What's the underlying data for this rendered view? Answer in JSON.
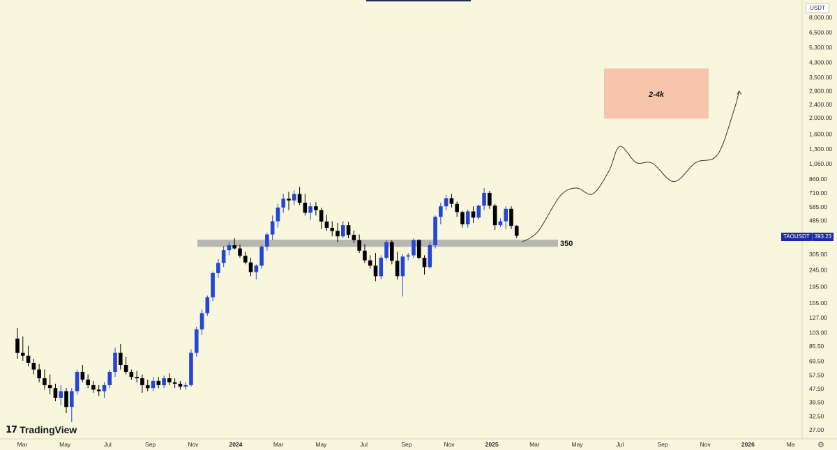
{
  "currency": "USDT",
  "brand": "TradingView",
  "symbol": "TAOUSDT",
  "last_price_label": "393.23",
  "support_label": "350",
  "target_label": "2-4k",
  "colors": {
    "background": "#f8f6dc",
    "bull": "#2446d6",
    "bear": "#000000",
    "support_zone": "#b7b7b1",
    "target_zone": "#f7c4ac",
    "projection": "#333333",
    "price_tag": "#1f2a9c"
  },
  "chart_data": {
    "type": "candlestick",
    "y_scale": "log",
    "y_tick_labels": [
      "8,000.00",
      "6,500.00",
      "5,300.00",
      "4,300.00",
      "3,500.00",
      "2,900.00",
      "2,400.00",
      "2,000.00",
      "1,600.00",
      "1,300.00",
      "1,060.00",
      "860.00",
      "710.00",
      "585.00",
      "485.00",
      "305.00",
      "245.00",
      "195.00",
      "155.00",
      "127.00",
      "103.00",
      "85.50",
      "69.50",
      "57.50",
      "47.50",
      "39.50",
      "32.50",
      "27.00"
    ],
    "x_tick_labels": [
      {
        "label": "Mar",
        "bold": false
      },
      {
        "label": "May",
        "bold": false
      },
      {
        "label": "Jul",
        "bold": false
      },
      {
        "label": "Sep",
        "bold": false
      },
      {
        "label": "Nov",
        "bold": false
      },
      {
        "label": "2024",
        "bold": true
      },
      {
        "label": "Mar",
        "bold": false
      },
      {
        "label": "May",
        "bold": false
      },
      {
        "label": "Jul",
        "bold": false
      },
      {
        "label": "Sep",
        "bold": false
      },
      {
        "label": "Nov",
        "bold": false
      },
      {
        "label": "2025",
        "bold": true
      },
      {
        "label": "Mar",
        "bold": false
      },
      {
        "label": "May",
        "bold": false
      },
      {
        "label": "Jul",
        "bold": false
      },
      {
        "label": "Sep",
        "bold": false
      },
      {
        "label": "Nov",
        "bold": false
      },
      {
        "label": "2026",
        "bold": true
      },
      {
        "label": "Ma",
        "bold": false
      }
    ],
    "candles": [
      [
        95,
        110,
        72,
        78
      ],
      [
        78,
        98,
        70,
        75
      ],
      [
        75,
        86,
        65,
        68
      ],
      [
        68,
        72,
        58,
        62
      ],
      [
        62,
        67,
        52,
        55
      ],
      [
        55,
        62,
        47,
        50
      ],
      [
        50,
        58,
        44,
        48
      ],
      [
        48,
        51,
        40,
        42
      ],
      [
        42,
        50,
        38,
        46
      ],
      [
        46,
        48,
        34,
        37
      ],
      [
        37,
        48,
        30,
        46
      ],
      [
        46,
        62,
        44,
        60
      ],
      [
        60,
        66,
        52,
        54
      ],
      [
        54,
        58,
        48,
        50
      ],
      [
        50,
        53,
        45,
        47
      ],
      [
        47,
        50,
        43,
        46
      ],
      [
        46,
        52,
        42,
        50
      ],
      [
        50,
        62,
        48,
        60
      ],
      [
        60,
        84,
        56,
        78
      ],
      [
        78,
        88,
        62,
        66
      ],
      [
        66,
        74,
        58,
        60
      ],
      [
        60,
        62,
        54,
        56
      ],
      [
        56,
        61,
        52,
        55
      ],
      [
        55,
        58,
        45,
        50
      ],
      [
        50,
        54,
        46,
        48
      ],
      [
        48,
        56,
        46,
        53
      ],
      [
        53,
        56,
        48,
        50
      ],
      [
        50,
        57,
        48,
        55
      ],
      [
        55,
        59,
        50,
        52
      ],
      [
        52,
        55,
        48,
        51
      ],
      [
        51,
        53,
        47,
        49
      ],
      [
        49,
        52,
        47,
        50
      ],
      [
        50,
        82,
        49,
        78
      ],
      [
        78,
        112,
        74,
        108
      ],
      [
        108,
        142,
        100,
        135
      ],
      [
        135,
        172,
        130,
        168
      ],
      [
        168,
        240,
        160,
        235
      ],
      [
        235,
        285,
        220,
        270
      ],
      [
        270,
        340,
        255,
        322
      ],
      [
        322,
        360,
        300,
        345
      ],
      [
        345,
        380,
        325,
        330
      ],
      [
        330,
        348,
        290,
        298
      ],
      [
        298,
        315,
        265,
        272
      ],
      [
        272,
        290,
        225,
        238
      ],
      [
        238,
        265,
        215,
        260
      ],
      [
        260,
        345,
        250,
        338
      ],
      [
        338,
        410,
        320,
        400
      ],
      [
        400,
        520,
        370,
        480
      ],
      [
        480,
        610,
        440,
        580
      ],
      [
        580,
        700,
        540,
        655
      ],
      [
        655,
        720,
        560,
        640
      ],
      [
        640,
        735,
        600,
        700
      ],
      [
        700,
        770,
        600,
        620
      ],
      [
        620,
        700,
        520,
        540
      ],
      [
        540,
        620,
        490,
        590
      ],
      [
        590,
        625,
        520,
        560
      ],
      [
        560,
        580,
        430,
        478
      ],
      [
        478,
        525,
        420,
        438
      ],
      [
        438,
        480,
        390,
        420
      ],
      [
        420,
        470,
        360,
        390
      ],
      [
        390,
        480,
        380,
        455
      ],
      [
        455,
        475,
        380,
        398
      ],
      [
        398,
        422,
        355,
        370
      ],
      [
        370,
        400,
        310,
        320
      ],
      [
        320,
        350,
        270,
        280
      ],
      [
        280,
        300,
        250,
        260
      ],
      [
        260,
        310,
        210,
        225
      ],
      [
        225,
        300,
        215,
        290
      ],
      [
        290,
        370,
        280,
        360
      ],
      [
        360,
        370,
        265,
        278
      ],
      [
        278,
        315,
        215,
        225
      ],
      [
        225,
        305,
        170,
        295
      ],
      [
        295,
        310,
        280,
        300
      ],
      [
        300,
        380,
        290,
        370
      ],
      [
        370,
        375,
        285,
        290
      ],
      [
        290,
        300,
        230,
        255
      ],
      [
        255,
        360,
        250,
        345
      ],
      [
        345,
        520,
        330,
        510
      ],
      [
        510,
        620,
        460,
        590
      ],
      [
        590,
        690,
        560,
        660
      ],
      [
        660,
        700,
        580,
        610
      ],
      [
        610,
        630,
        510,
        545
      ],
      [
        545,
        555,
        440,
        460
      ],
      [
        460,
        565,
        440,
        550
      ],
      [
        550,
        590,
        470,
        505
      ],
      [
        505,
        605,
        490,
        595
      ],
      [
        595,
        760,
        560,
        710
      ],
      [
        710,
        730,
        570,
        595
      ],
      [
        595,
        610,
        425,
        455
      ],
      [
        455,
        500,
        445,
        480
      ],
      [
        480,
        590,
        430,
        570
      ],
      [
        570,
        590,
        430,
        450
      ],
      [
        450,
        455,
        380,
        393.23
      ]
    ],
    "candle_x_start": 0,
    "support_zone": {
      "low": 337,
      "high": 372
    },
    "target_zone": {
      "low": 1980,
      "high": 3950
    },
    "projection_path": [
      {
        "i": 93,
        "v": 360
      },
      {
        "i": 96,
        "v": 420
      },
      {
        "i": 100,
        "v": 680
      },
      {
        "i": 103,
        "v": 760
      },
      {
        "i": 106,
        "v": 700
      },
      {
        "i": 109,
        "v": 960
      },
      {
        "i": 111,
        "v": 1350
      },
      {
        "i": 114,
        "v": 1080
      },
      {
        "i": 117,
        "v": 1070
      },
      {
        "i": 121,
        "v": 830
      },
      {
        "i": 125,
        "v": 1080
      },
      {
        "i": 129,
        "v": 1200
      },
      {
        "i": 132,
        "v": 2200
      },
      {
        "i": 133,
        "v": 2900
      }
    ]
  }
}
